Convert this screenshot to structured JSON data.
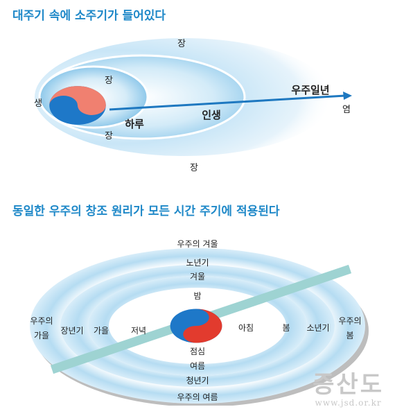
{
  "titles": {
    "top": "대주기 속에 소주기가 들어있다",
    "bottom": "동일한 우주의 창조 원리가 모든 시간 주기에 적용된다"
  },
  "diagram1": {
    "labels": {
      "outer_top": "장",
      "inner_top": "장",
      "left": "생",
      "inner_bottom": "장",
      "outer_bottom": "장",
      "right": "염",
      "day": "하루",
      "life": "인생",
      "cosmic_year": "우주일년"
    }
  },
  "diagram2": {
    "labels": {
      "top_outer": "우주의 겨울",
      "top_middle": "노년기",
      "top_inner": "겨울",
      "center_top": "밤",
      "center_bottom": "점심",
      "bottom_inner": "여름",
      "bottom_middle": "청년기",
      "bottom_outer": "우주의 여름",
      "left_outer_1": "우주의",
      "left_outer_2": "가을",
      "left_middle": "장년기",
      "left_inner": "가을",
      "left_center": "저녁",
      "right_center": "아침",
      "right_inner": "봄",
      "right_middle": "소년기",
      "right_outer_1": "우주의",
      "right_outer_2": "봄"
    }
  },
  "watermark": {
    "main": "증산도",
    "url": "www.jsd.or.kr"
  },
  "colors": {
    "title": "#1e88c8",
    "ring_light": "#d6ecf8",
    "ring_mid": "#a9d6f0",
    "arrow": "#1e78c0",
    "bar": "#9ed3d2",
    "yin": "#1e78c8",
    "yang_red": "#e23b2e",
    "yang_salmon": "#f08070",
    "watermark": "#c8c8c8"
  }
}
